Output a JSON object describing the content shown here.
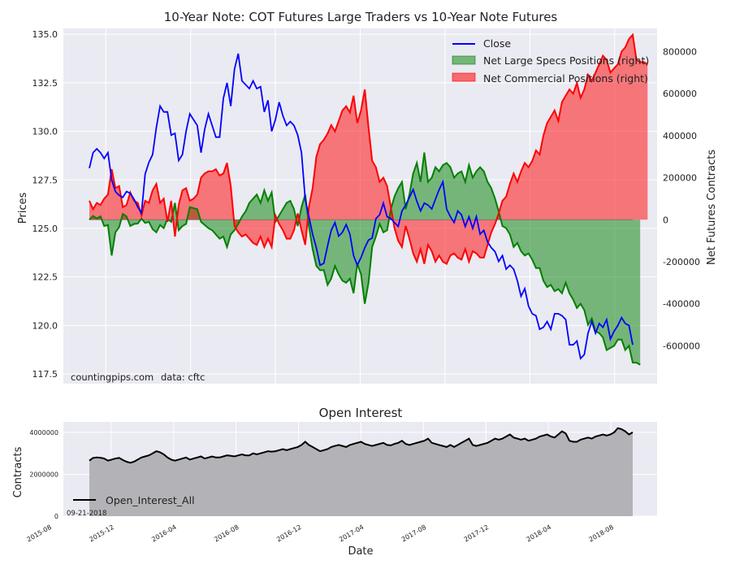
{
  "chart_data": [
    {
      "type": "line",
      "title": "10-Year Note: COT Futures Large Traders vs 10-Year Note Futures",
      "ylabel": "Prices",
      "ylabel_right": "Net Futures Contracts",
      "ylim": [
        117.0,
        135.3
      ],
      "ylim_right": [
        -780000,
        910000
      ],
      "y_ticks": [
        "117.5",
        "120.0",
        "122.5",
        "125.0",
        "127.5",
        "130.0",
        "132.5",
        "135.0"
      ],
      "y_right_ticks": [
        "-600000",
        "-400000",
        "-200000",
        "0",
        "200000",
        "400000",
        "600000",
        "800000"
      ],
      "legend_position": "top-right",
      "series": [
        {
          "name": "Close",
          "axis": "left",
          "color": "#0000ff",
          "values": [
            128.1,
            128.9,
            129.1,
            128.9,
            128.6,
            128.9,
            127.5,
            126.9,
            126.7,
            126.6,
            126.9,
            126.8,
            126.5,
            126.1,
            125.8,
            127.8,
            128.4,
            128.8,
            130.2,
            131.3,
            131.0,
            131.0,
            129.8,
            129.9,
            128.5,
            128.8,
            130.0,
            130.9,
            130.6,
            130.3,
            128.9,
            130.1,
            130.9,
            130.3,
            129.7,
            129.7,
            131.7,
            132.5,
            131.3,
            133.2,
            134.0,
            132.6,
            132.4,
            132.2,
            132.6,
            132.2,
            132.3,
            131.0,
            131.6,
            130.0,
            130.6,
            131.5,
            130.8,
            130.3,
            130.5,
            130.3,
            129.8,
            128.9,
            126.5,
            125.6,
            124.7,
            124.0,
            123.1,
            123.2,
            124.1,
            124.9,
            125.3,
            124.6,
            124.8,
            125.2,
            124.7,
            123.6,
            123.1,
            123.5,
            124.0,
            124.4,
            124.5,
            125.5,
            125.7,
            126.3,
            125.6,
            125.5,
            125.3,
            125.1,
            125.9,
            126.2,
            126.6,
            127.0,
            126.4,
            125.9,
            126.3,
            126.2,
            126.0,
            126.5,
            127.0,
            127.4,
            126.0,
            125.6,
            125.3,
            125.9,
            125.7,
            125.1,
            125.6,
            125.0,
            125.6,
            124.7,
            124.9,
            124.3,
            124.0,
            123.8,
            123.3,
            123.6,
            122.9,
            123.1,
            122.9,
            122.3,
            121.5,
            121.9,
            121.0,
            120.6,
            120.5,
            119.8,
            119.9,
            120.2,
            119.8,
            120.6,
            120.6,
            120.5,
            120.3,
            119.0,
            119.0,
            119.2,
            118.3,
            118.5,
            119.6,
            120.2,
            119.6,
            120.1,
            119.9,
            120.3,
            119.3,
            119.7,
            120.0,
            120.4,
            120.1,
            120.0,
            119.0
          ]
        },
        {
          "name": "Net Large Specs Positions (right)",
          "axis": "right",
          "color": "#008000",
          "values": [
            0,
            18000,
            6000,
            16000,
            -30000,
            -25000,
            -170000,
            -60000,
            -35000,
            28000,
            15000,
            -30000,
            -20000,
            -18000,
            5000,
            -15000,
            -10000,
            -45000,
            -60000,
            -25000,
            -40000,
            5000,
            -10000,
            80000,
            -50000,
            -30000,
            -20000,
            60000,
            55000,
            50000,
            -10000,
            -25000,
            -40000,
            -50000,
            -70000,
            -90000,
            -80000,
            -130000,
            -70000,
            -50000,
            -20000,
            15000,
            40000,
            80000,
            100000,
            120000,
            80000,
            140000,
            90000,
            130000,
            -10000,
            20000,
            50000,
            80000,
            90000,
            50000,
            -30000,
            60000,
            120000,
            -30000,
            -140000,
            -220000,
            -240000,
            -240000,
            -310000,
            -280000,
            -220000,
            -260000,
            -290000,
            -300000,
            -280000,
            -350000,
            -210000,
            -260000,
            -400000,
            -300000,
            -130000,
            -80000,
            -20000,
            -60000,
            -50000,
            50000,
            110000,
            150000,
            180000,
            50000,
            120000,
            220000,
            270000,
            180000,
            320000,
            180000,
            200000,
            250000,
            230000,
            260000,
            270000,
            250000,
            200000,
            220000,
            230000,
            180000,
            260000,
            200000,
            230000,
            250000,
            230000,
            180000,
            150000,
            100000,
            40000,
            -30000,
            -40000,
            -70000,
            -130000,
            -110000,
            -150000,
            -170000,
            -160000,
            -190000,
            -230000,
            -230000,
            -290000,
            -320000,
            -310000,
            -340000,
            -330000,
            -350000,
            -300000,
            -350000,
            -380000,
            -420000,
            -400000,
            -430000,
            -500000,
            -470000,
            -530000,
            -540000,
            -560000,
            -620000,
            -610000,
            -600000,
            -570000,
            -570000,
            -620000,
            -600000,
            -680000,
            -680000,
            -690000
          ]
        },
        {
          "name": "Net Commercial Positions (right)",
          "axis": "right",
          "color": "#ff0000",
          "values": [
            90000,
            50000,
            80000,
            70000,
            100000,
            120000,
            240000,
            150000,
            160000,
            60000,
            70000,
            130000,
            90000,
            80000,
            20000,
            90000,
            80000,
            140000,
            170000,
            80000,
            100000,
            -10000,
            90000,
            -80000,
            70000,
            140000,
            150000,
            90000,
            100000,
            120000,
            200000,
            220000,
            230000,
            230000,
            240000,
            210000,
            220000,
            270000,
            160000,
            -30000,
            -60000,
            -80000,
            -70000,
            -90000,
            -110000,
            -120000,
            -80000,
            -130000,
            -90000,
            -130000,
            20000,
            -20000,
            -50000,
            -90000,
            -90000,
            -50000,
            30000,
            -50000,
            -120000,
            60000,
            150000,
            300000,
            360000,
            380000,
            410000,
            450000,
            420000,
            470000,
            520000,
            540000,
            510000,
            590000,
            460000,
            520000,
            620000,
            440000,
            280000,
            250000,
            180000,
            200000,
            160000,
            60000,
            -40000,
            -100000,
            -130000,
            -30000,
            -90000,
            -160000,
            -200000,
            -140000,
            -210000,
            -120000,
            -150000,
            -200000,
            -170000,
            -200000,
            -210000,
            -170000,
            -160000,
            -180000,
            -190000,
            -140000,
            -200000,
            -150000,
            -160000,
            -180000,
            -180000,
            -120000,
            -60000,
            -20000,
            30000,
            90000,
            110000,
            170000,
            220000,
            180000,
            230000,
            270000,
            250000,
            280000,
            330000,
            310000,
            400000,
            460000,
            490000,
            520000,
            470000,
            560000,
            590000,
            620000,
            600000,
            650000,
            580000,
            620000,
            690000,
            660000,
            700000,
            740000,
            780000,
            760000,
            700000,
            720000,
            740000,
            800000,
            820000,
            860000,
            880000,
            760000,
            750000,
            750000,
            740000
          ]
        }
      ],
      "annotations": [
        "countingpips.com",
        "data: cftc"
      ]
    },
    {
      "type": "area",
      "title": "Open Interest",
      "xlabel": "Date",
      "ylabel": "Contracts",
      "ylim": [
        0,
        4500000
      ],
      "y_ticks": [
        "0",
        "2000000",
        "4000000"
      ],
      "x_ticks": [
        "2015-08",
        "2015-12",
        "2016-04",
        "2016-08",
        "2016-12",
        "2017-04",
        "2017-08",
        "2017-12",
        "2018-04",
        "2018-08"
      ],
      "legend_position": "bottom-left",
      "date_label": "09-21-2018",
      "series": [
        {
          "name": "Open_Interest_All",
          "color": "#000000",
          "fill": "#b3b2b6",
          "values": [
            2650000,
            2780000,
            2800000,
            2790000,
            2750000,
            2650000,
            2700000,
            2750000,
            2780000,
            2680000,
            2600000,
            2550000,
            2600000,
            2700000,
            2800000,
            2850000,
            2900000,
            3000000,
            3100000,
            3050000,
            2950000,
            2800000,
            2700000,
            2650000,
            2700000,
            2750000,
            2800000,
            2700000,
            2750000,
            2800000,
            2850000,
            2750000,
            2800000,
            2850000,
            2800000,
            2800000,
            2850000,
            2900000,
            2880000,
            2850000,
            2900000,
            2950000,
            2900000,
            2900000,
            3000000,
            2950000,
            3000000,
            3050000,
            3100000,
            3080000,
            3100000,
            3150000,
            3200000,
            3150000,
            3200000,
            3250000,
            3300000,
            3400000,
            3550000,
            3400000,
            3300000,
            3200000,
            3100000,
            3150000,
            3200000,
            3300000,
            3350000,
            3400000,
            3350000,
            3300000,
            3400000,
            3450000,
            3500000,
            3550000,
            3450000,
            3400000,
            3350000,
            3400000,
            3450000,
            3500000,
            3400000,
            3380000,
            3450000,
            3500000,
            3600000,
            3450000,
            3400000,
            3450000,
            3500000,
            3550000,
            3600000,
            3700000,
            3500000,
            3450000,
            3400000,
            3350000,
            3300000,
            3400000,
            3300000,
            3400000,
            3500000,
            3600000,
            3700000,
            3400000,
            3350000,
            3400000,
            3450000,
            3500000,
            3600000,
            3700000,
            3650000,
            3700000,
            3800000,
            3900000,
            3750000,
            3700000,
            3650000,
            3700000,
            3600000,
            3650000,
            3700000,
            3800000,
            3850000,
            3900000,
            3800000,
            3750000,
            3900000,
            4050000,
            3950000,
            3600000,
            3550000,
            3550000,
            3650000,
            3700000,
            3750000,
            3700000,
            3800000,
            3850000,
            3900000,
            3850000,
            3900000,
            4000000,
            4200000,
            4150000,
            4050000,
            3900000,
            4000000
          ]
        }
      ]
    }
  ]
}
